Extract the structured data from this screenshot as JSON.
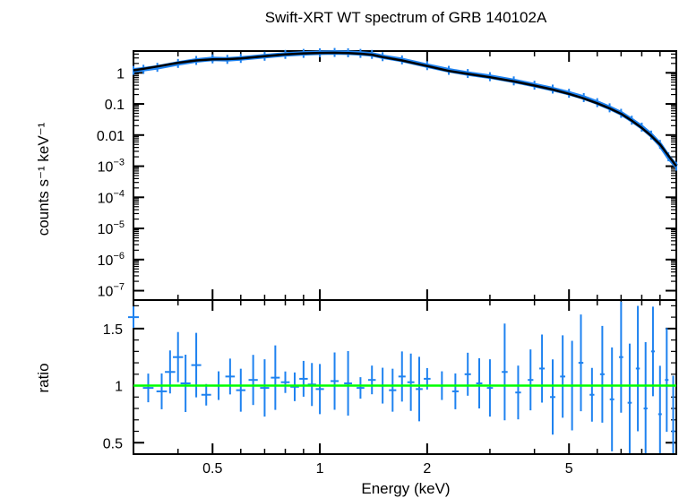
{
  "chart_data": {
    "type": "scatter",
    "title": "Swift-XRT WT spectrum of GRB 140102A",
    "xlabel": "Energy (keV)",
    "x_scale": "log",
    "xlim": [
      0.3,
      10
    ],
    "x_ticks": [
      0.5,
      1,
      2,
      5
    ],
    "x_tick_labels": [
      "0.5",
      "1",
      "2",
      "5"
    ],
    "panels": [
      {
        "name": "spectrum",
        "ylabel": "counts s⁻¹ keV⁻¹",
        "y_scale": "log",
        "ylim": [
          5e-08,
          5
        ],
        "y_ticks": [
          1,
          0.1,
          0.01,
          0.001,
          0.0001,
          1e-05,
          1e-06,
          1e-07
        ],
        "y_tick_labels": [
          {
            "text": "1"
          },
          {
            "text": "0.1"
          },
          {
            "text": "0.01"
          },
          {
            "text": "10",
            "exp": "−3"
          },
          {
            "text": "10",
            "exp": "−4"
          },
          {
            "text": "10",
            "exp": "−5"
          },
          {
            "text": "10",
            "exp": "−6"
          },
          {
            "text": "10",
            "exp": "−7"
          }
        ],
        "series": [
          {
            "role": "data",
            "color": "#1e82f0",
            "x": [
              0.3,
              0.32,
              0.35,
              0.4,
              0.45,
              0.5,
              0.55,
              0.6,
              0.7,
              0.8,
              0.9,
              1.0,
              1.1,
              1.2,
              1.3,
              1.4,
              1.5,
              1.7,
              2.0,
              2.3,
              2.6,
              3.0,
              3.5,
              4.0,
              4.5,
              5.0,
              5.5,
              6.0,
              6.5,
              7.0,
              7.5,
              8.0,
              8.5,
              9.0,
              9.5,
              10.0
            ],
            "y": [
              1.2,
              1.3,
              1.5,
              2.0,
              2.5,
              2.8,
              2.7,
              2.9,
              3.4,
              3.9,
              4.2,
              4.4,
              4.5,
              4.4,
              4.2,
              3.9,
              3.3,
              2.6,
              1.7,
              1.2,
              0.95,
              0.75,
              0.55,
              0.4,
              0.3,
              0.22,
              0.16,
              0.11,
              0.075,
              0.05,
              0.03,
              0.018,
              0.01,
              0.005,
              0.002,
              0.001
            ]
          },
          {
            "role": "model",
            "color": "#000000",
            "x": [
              0.3,
              0.32,
              0.35,
              0.4,
              0.45,
              0.5,
              0.55,
              0.6,
              0.7,
              0.8,
              0.9,
              1.0,
              1.1,
              1.2,
              1.3,
              1.4,
              1.5,
              1.7,
              2.0,
              2.3,
              2.6,
              3.0,
              3.5,
              4.0,
              4.5,
              5.0,
              5.5,
              6.0,
              6.5,
              7.0,
              7.5,
              8.0,
              8.5,
              9.0,
              9.5,
              10.0
            ],
            "y": [
              1.2,
              1.35,
              1.6,
              2.1,
              2.5,
              2.7,
              2.75,
              2.9,
              3.4,
              3.9,
              4.2,
              4.35,
              4.4,
              4.3,
              4.1,
              3.8,
              3.2,
              2.5,
              1.65,
              1.15,
              0.92,
              0.72,
              0.53,
              0.39,
              0.29,
              0.21,
              0.15,
              0.105,
              0.072,
              0.048,
              0.029,
              0.017,
              0.0095,
              0.005,
              0.0022,
              0.001
            ]
          }
        ]
      },
      {
        "name": "ratio",
        "ylabel": "ratio",
        "y_scale": "linear",
        "ylim": [
          0.4,
          1.75
        ],
        "y_ticks": [
          0.5,
          1,
          1.5
        ],
        "y_tick_labels": [
          {
            "text": "0.5"
          },
          {
            "text": "1"
          },
          {
            "text": "1.5"
          }
        ],
        "reference_line": {
          "y": 1,
          "color": "#00ff00"
        },
        "series": [
          {
            "role": "data",
            "color": "#1e82f0",
            "x": [
              0.3,
              0.33,
              0.36,
              0.38,
              0.4,
              0.42,
              0.45,
              0.48,
              0.52,
              0.56,
              0.6,
              0.65,
              0.7,
              0.75,
              0.8,
              0.85,
              0.9,
              0.95,
              1.0,
              1.1,
              1.2,
              1.3,
              1.4,
              1.5,
              1.6,
              1.7,
              1.8,
              1.9,
              2.0,
              2.2,
              2.4,
              2.6,
              2.8,
              3.0,
              3.3,
              3.6,
              3.9,
              4.2,
              4.5,
              4.8,
              5.1,
              5.4,
              5.8,
              6.2,
              6.6,
              7.0,
              7.4,
              7.8,
              8.2,
              8.6,
              9.0,
              9.4,
              9.8
            ],
            "y": [
              1.6,
              0.98,
              0.95,
              1.12,
              1.25,
              1.02,
              1.18,
              0.92,
              1.0,
              1.08,
              0.96,
              1.05,
              0.98,
              1.07,
              1.03,
              0.99,
              1.06,
              1.01,
              0.97,
              1.04,
              1.02,
              0.98,
              1.05,
              1.0,
              0.96,
              1.08,
              1.03,
              0.97,
              1.06,
              1.0,
              0.95,
              1.1,
              1.02,
              0.98,
              1.12,
              0.94,
              1.05,
              1.15,
              0.9,
              1.08,
              1.0,
              1.2,
              0.92,
              1.1,
              0.88,
              1.25,
              0.85,
              1.15,
              0.8,
              1.3,
              0.75,
              1.05,
              0.6
            ]
          }
        ]
      }
    ]
  }
}
